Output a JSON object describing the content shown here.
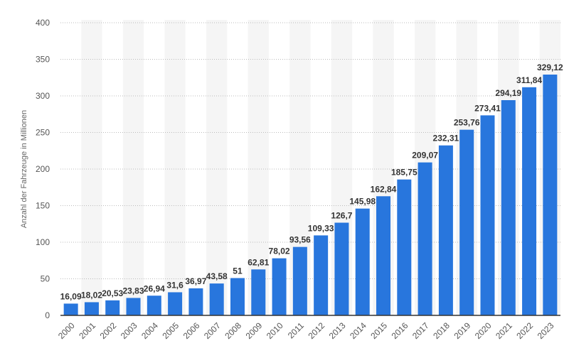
{
  "chart_data": {
    "type": "bar",
    "title": "",
    "xlabel": "",
    "ylabel": "Anzahl der Fahrzeuge in Millionen",
    "ylim": [
      0,
      400
    ],
    "yticks": [
      0,
      50,
      100,
      150,
      200,
      250,
      300,
      350,
      400
    ],
    "grid": true,
    "bar_color": "#2876dd",
    "categories": [
      "2000",
      "2001",
      "2002",
      "2003",
      "2004",
      "2005",
      "2006",
      "2007",
      "2008",
      "2009",
      "2010",
      "2011",
      "2012",
      "2013",
      "2014",
      "2015",
      "2016",
      "2017",
      "2018",
      "2019",
      "2020",
      "2021",
      "2022",
      "2023"
    ],
    "values": [
      16.09,
      18.02,
      20.53,
      23.83,
      26.94,
      31.6,
      36.97,
      43.58,
      51,
      62.81,
      78.02,
      93.56,
      109.33,
      126.7,
      145.98,
      162.84,
      185.75,
      209.07,
      232.31,
      253.76,
      273.41,
      294.19,
      311.84,
      329.12
    ],
    "labels": [
      "16,09",
      "18,02",
      "20,53",
      "23,83",
      "26,94",
      "31,6",
      "36,97",
      "43,58",
      "51",
      "62,81",
      "78,02",
      "93,56",
      "109,33",
      "126,7",
      "145,98",
      "162,84",
      "185,75",
      "209,07",
      "232,31",
      "253,76",
      "273,41",
      "294,19",
      "311,84",
      "329,12"
    ]
  }
}
